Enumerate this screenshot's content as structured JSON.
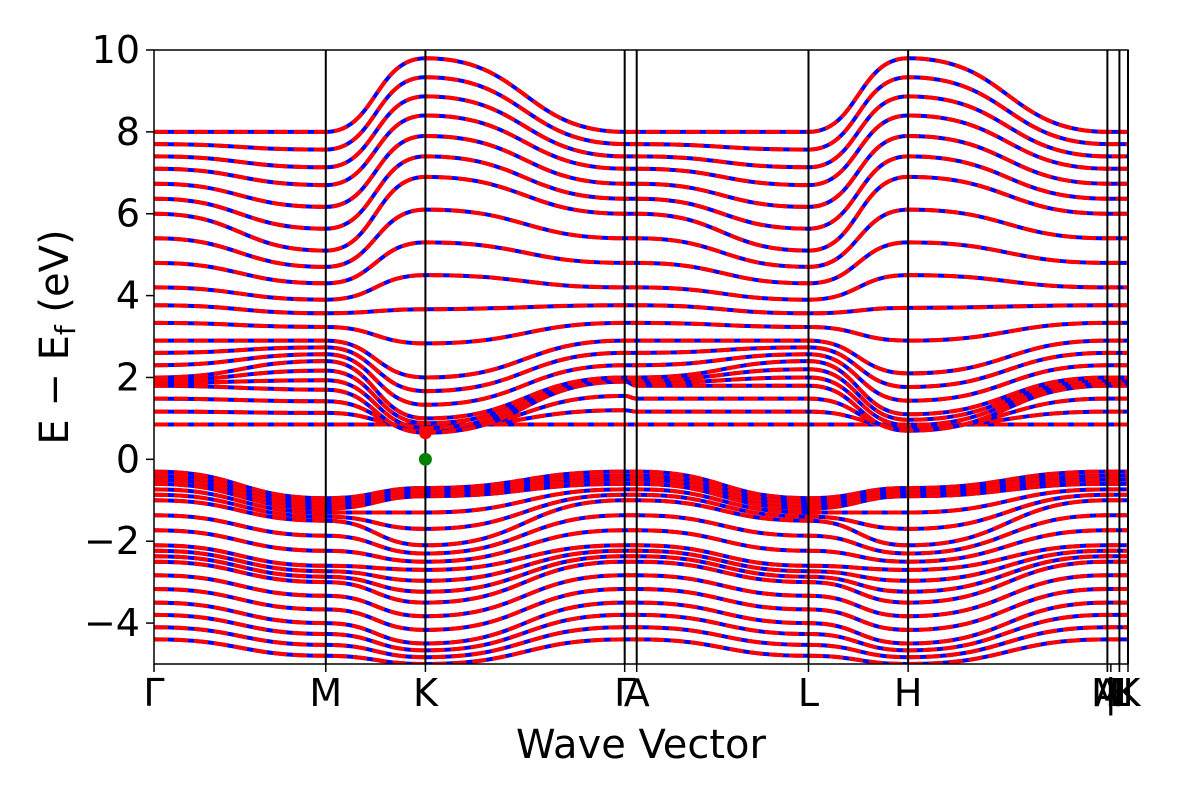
{
  "chart_data": {
    "type": "line",
    "xlabel": "Wave Vector",
    "ylabel": {
      "main": "E − E",
      "subscript": "f",
      "unit": " (eV)"
    },
    "ylim": [
      -5,
      10
    ],
    "yticks": [
      -4,
      -2,
      0,
      2,
      4,
      6,
      8,
      10
    ],
    "ytick_labels": [
      "−4",
      "−2",
      "0",
      "2",
      "4",
      "6",
      "8",
      "10"
    ],
    "xlim": [
      0,
      5.67
    ],
    "high_symmetry_points": [
      {
        "label": "Γ",
        "x": 0.0
      },
      {
        "label": "M",
        "x": 1.0
      },
      {
        "label": "K",
        "x": 1.58
      },
      {
        "label": "Γ",
        "x": 2.74
      },
      {
        "label": "A",
        "x": 2.81
      },
      {
        "label": "L",
        "x": 3.81
      },
      {
        "label": "H",
        "x": 4.39
      },
      {
        "label": "A",
        "x": 5.55
      },
      {
        "label": "M",
        "x": 5.55
      },
      {
        "label": "|",
        "x": 5.57
      },
      {
        "label": "L",
        "x": 5.62
      },
      {
        "label": "H",
        "x": 5.62
      },
      {
        "label": "K",
        "x": 5.67
      }
    ],
    "vertical_lines_x": [
      1.0,
      1.58,
      2.74,
      2.81,
      3.81,
      4.39,
      5.55,
      5.62,
      5.67
    ],
    "series": [
      {
        "color": "#0000ff",
        "style": "solid"
      },
      {
        "color": "#ff0000",
        "style": "dashed"
      }
    ],
    "bands": {
      "conduction": [
        [
          0.85,
          0.85,
          0.85,
          0.85,
          0.85,
          0.85,
          0.85,
          0.85
        ],
        [
          1.8,
          1.7,
          0.65,
          1.9,
          1.8,
          0.7,
          1.8,
          1.8
        ],
        [
          2.0,
          2.4,
          1.0,
          2.0,
          2.0,
          1.1,
          2.4,
          2.0
        ],
        [
          2.9,
          2.9,
          2.0,
          2.9,
          2.9,
          2.1,
          2.9,
          2.9
        ],
        [
          4.2,
          3.9,
          4.5,
          4.2,
          4.2,
          4.5,
          3.9,
          4.2
        ],
        [
          6.0,
          5.1,
          6.9,
          6.0,
          6.0,
          6.9,
          5.1,
          6.0
        ],
        [
          7.1,
          6.7,
          8.4,
          7.1,
          7.1,
          8.4,
          6.7,
          7.1
        ],
        [
          8.0,
          8.0,
          9.8,
          8.0,
          8.0,
          9.8,
          8.0,
          8.0
        ]
      ],
      "valence": [
        [
          -0.3,
          -0.95,
          -0.7,
          -0.3,
          -0.3,
          -0.7,
          -0.95,
          -0.3
        ],
        [
          -0.6,
          -1.2,
          -0.9,
          -0.6,
          -0.6,
          -0.9,
          -1.2,
          -0.6
        ],
        [
          -1.0,
          -1.5,
          -2.1,
          -1.0,
          -1.0,
          -2.1,
          -1.5,
          -1.0
        ],
        [
          -2.1,
          -2.6,
          -2.7,
          -2.1,
          -2.1,
          -2.7,
          -2.6,
          -2.1
        ],
        [
          -2.5,
          -3.0,
          -3.5,
          -2.5,
          -2.5,
          -3.5,
          -3.0,
          -2.5
        ],
        [
          -3.5,
          -4.0,
          -4.5,
          -3.5,
          -3.5,
          -4.5,
          -4.0,
          -3.5
        ],
        [
          -4.4,
          -4.8,
          -5.0,
          -4.4,
          -4.4,
          -5.0,
          -4.8,
          -4.4
        ]
      ]
    },
    "band_nodes_x": [
      0.0,
      1.0,
      1.58,
      2.74,
      2.81,
      4.39,
      3.81,
      5.55
    ],
    "markers": [
      {
        "x": 1.58,
        "y": 0.65,
        "color": "#ff0000"
      },
      {
        "x": 1.58,
        "y": 0.0,
        "color": "#008000"
      }
    ]
  }
}
